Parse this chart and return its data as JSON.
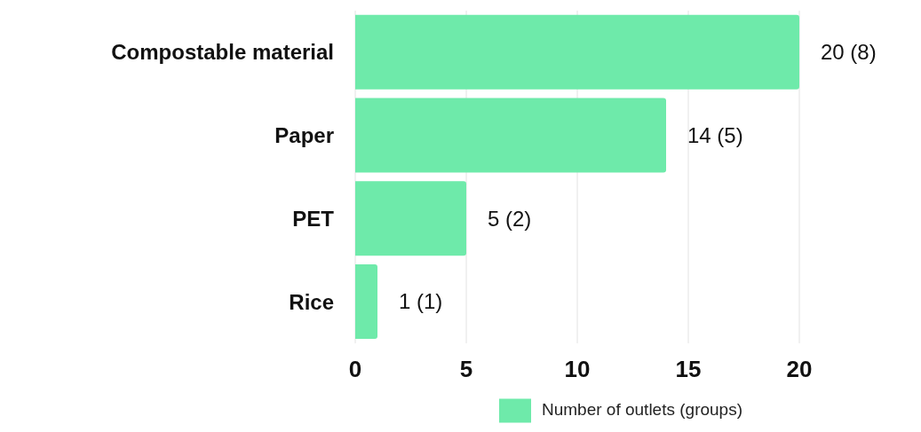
{
  "chart_data": {
    "type": "bar",
    "orientation": "horizontal",
    "categories": [
      "Compostable material",
      "Paper",
      "PET",
      "Rice"
    ],
    "series": [
      {
        "name": "Number of outlets (groups)",
        "color": "#6eeaaa",
        "values": [
          20,
          14,
          5,
          1
        ],
        "value_labels": [
          "20 (8)",
          "14 (5)",
          "5 (2)",
          "1 (1)"
        ]
      }
    ],
    "xlim": [
      0,
      20
    ],
    "xticks": [
      0,
      5,
      10,
      15,
      20
    ],
    "grid": "x",
    "legend": "bottom"
  }
}
